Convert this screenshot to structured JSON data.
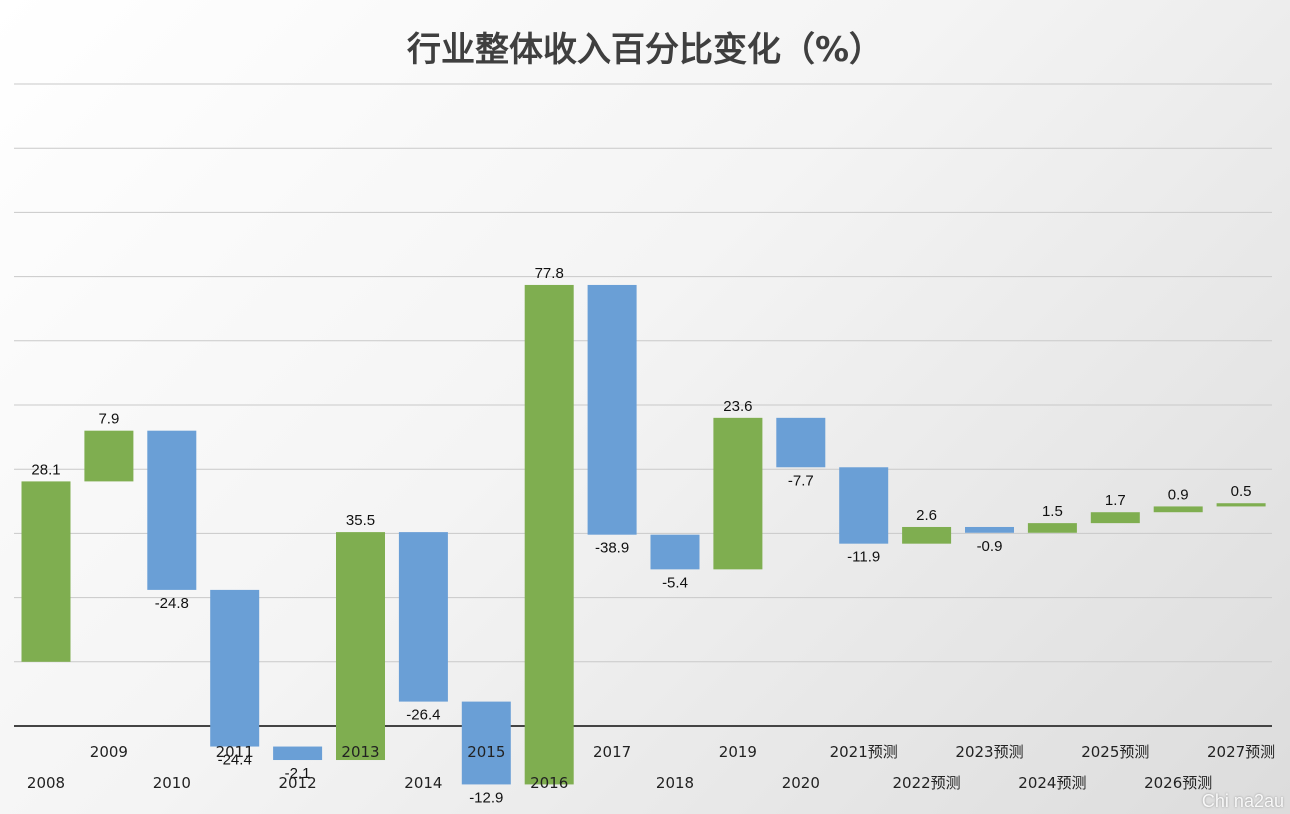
{
  "chart_data": {
    "type": "bar",
    "subtype": "waterfall",
    "title": "行业整体收入百分比变化（%）",
    "categories": [
      "2008",
      "2009",
      "2010",
      "2011",
      "2012",
      "2013",
      "2014",
      "2015",
      "2016",
      "2017",
      "2018",
      "2019",
      "2020",
      "2021预测",
      "2022预测",
      "2023预测",
      "2024预测",
      "2025预测",
      "2026预测",
      "2027预测"
    ],
    "values": [
      28.1,
      7.9,
      -24.8,
      -24.4,
      -2.1,
      35.5,
      -26.4,
      -12.9,
      77.8,
      -38.9,
      -5.4,
      23.6,
      -7.7,
      -11.9,
      2.6,
      -0.9,
      1.5,
      1.7,
      0.9,
      0.5
    ],
    "value_labels": [
      "28.1",
      "7.9",
      "-24.8",
      "-24.4",
      "-2.1",
      "35.5",
      "-26.4",
      "-12.9",
      "77.8",
      "-38.9",
      "-5.4",
      "23.6",
      "-7.7",
      "-11.9",
      "2.6",
      "-0.9",
      "1.5",
      "1.7",
      "0.9",
      "0.5"
    ],
    "colors": {
      "increase": "#7fae50",
      "decrease": "#6a9fd6"
    },
    "ylim": [
      -10,
      90
    ],
    "grid": true,
    "legend": "none"
  },
  "watermark": "Chi na2au"
}
